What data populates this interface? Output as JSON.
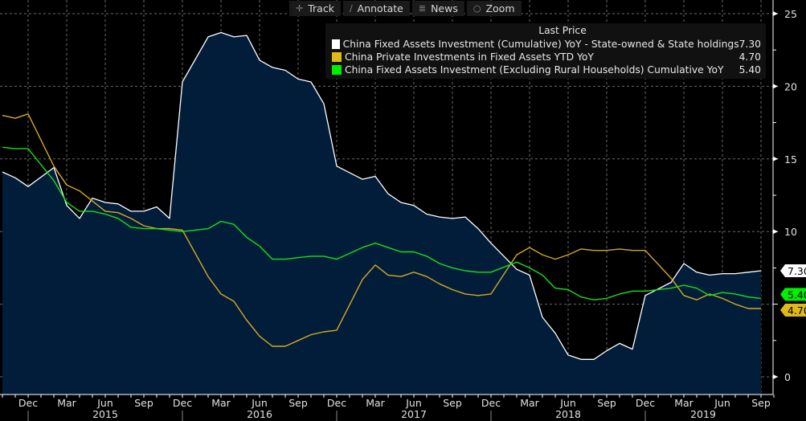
{
  "toolbar": {
    "items": [
      {
        "label": "Track",
        "icon": "crosshair-icon"
      },
      {
        "label": "Annotate",
        "icon": "pencil-icon"
      },
      {
        "label": "News",
        "icon": "news-icon"
      },
      {
        "label": "Zoom",
        "icon": "magnifier-icon"
      }
    ]
  },
  "legend": {
    "title": "Last Price",
    "entries": [
      {
        "name": "China Fixed Assets Investment (Cumulative) YoY - State-owned & State holdings",
        "value": "7.30",
        "color": "#ffffff"
      },
      {
        "name": "China Private Investments in Fixed Assets YTD YoY",
        "value": "4.70",
        "color": "#e0b818"
      },
      {
        "name": "China Fixed Assets Investment (Excluding Rural Households) Cumulative YoY",
        "value": "5.40",
        "color": "#00ee00"
      }
    ]
  },
  "chart_data": {
    "type": "line",
    "title": "",
    "xlabel": "",
    "ylabel": "",
    "ylim": [
      -1,
      25.8
    ],
    "yticks": [
      0,
      5,
      10,
      15,
      20,
      25
    ],
    "ytick_labels": [
      "0",
      "",
      "10",
      "15",
      "20",
      "25"
    ],
    "grid": true,
    "legend_position": "top-right",
    "x_month_labels": [
      "Dec",
      "Mar",
      "Jun",
      "Sep",
      "Dec",
      "Mar",
      "Jun",
      "Sep",
      "Dec",
      "Mar",
      "Jun",
      "Sep",
      "Dec",
      "Mar",
      "Jun",
      "Sep",
      "Dec",
      "Mar",
      "Jun",
      "Sep"
    ],
    "x_year_labels": [
      "2015",
      "2016",
      "2017",
      "2018",
      "2019"
    ],
    "x": [
      "2014-10",
      "2014-11",
      "2014-12",
      "2015-02",
      "2015-03",
      "2015-04",
      "2015-05",
      "2015-06",
      "2015-07",
      "2015-08",
      "2015-09",
      "2015-10",
      "2015-11",
      "2015-12",
      "2016-02",
      "2016-03",
      "2016-04",
      "2016-05",
      "2016-06",
      "2016-07",
      "2016-08",
      "2016-09",
      "2016-10",
      "2016-11",
      "2016-12",
      "2017-02",
      "2017-03",
      "2017-04",
      "2017-05",
      "2017-06",
      "2017-07",
      "2017-08",
      "2017-09",
      "2017-10",
      "2017-11",
      "2017-12",
      "2018-02",
      "2018-03",
      "2018-04",
      "2018-05",
      "2018-06",
      "2018-07",
      "2018-08",
      "2018-09",
      "2018-10",
      "2018-11",
      "2018-12",
      "2019-02",
      "2019-03",
      "2019-04",
      "2019-05",
      "2019-06",
      "2019-07",
      "2019-08",
      "2019-09"
    ],
    "series": [
      {
        "name": "China Fixed Assets Investment (Cumulative) YoY - State-owned & State holdings",
        "color": "#ffffff",
        "fill": "#021d3a",
        "last": 7.3,
        "values": [
          14.1,
          13.7,
          13.1,
          14.4,
          11.8,
          10.9,
          12.3,
          12.0,
          11.9,
          11.4,
          11.4,
          11.7,
          10.9,
          20.3,
          23.4,
          23.7,
          23.4,
          23.5,
          21.8,
          21.3,
          21.1,
          20.5,
          20.3,
          18.8,
          14.5,
          13.6,
          13.8,
          12.6,
          12.0,
          11.8,
          11.2,
          11.0,
          10.9,
          11.0,
          10.2,
          9.2,
          7.4,
          7.0,
          4.1,
          3.0,
          1.5,
          1.2,
          1.2,
          1.8,
          2.3,
          1.9,
          5.6,
          6.5,
          7.8,
          7.2,
          7.0,
          7.1,
          7.1,
          7.2,
          7.3
        ]
      },
      {
        "name": "China Private Investments in Fixed Assets YTD YoY",
        "color": "#d4aa1e",
        "last": 4.7,
        "values": [
          18.0,
          17.8,
          18.1,
          14.5,
          13.2,
          12.8,
          12.1,
          11.4,
          11.3,
          10.9,
          10.4,
          10.2,
          10.2,
          10.1,
          6.9,
          5.7,
          5.2,
          3.9,
          2.8,
          2.1,
          2.1,
          2.5,
          2.9,
          3.1,
          3.2,
          6.7,
          7.7,
          7.0,
          6.9,
          7.2,
          6.9,
          6.4,
          6.0,
          5.7,
          5.6,
          5.7,
          8.4,
          8.9,
          8.4,
          8.1,
          8.4,
          8.8,
          8.7,
          8.7,
          8.8,
          8.7,
          8.7,
          6.8,
          5.6,
          5.3,
          5.7,
          5.4,
          5.0,
          4.7,
          4.7
        ]
      },
      {
        "name": "China Fixed Assets Investment (Excluding Rural Households) Cumulative YoY",
        "color": "#16e016",
        "last": 5.4,
        "values": [
          15.8,
          15.7,
          15.7,
          13.5,
          12.0,
          11.4,
          11.4,
          11.2,
          10.9,
          10.3,
          10.2,
          10.2,
          10.1,
          10.0,
          10.2,
          10.7,
          10.5,
          9.6,
          9.0,
          8.1,
          8.1,
          8.2,
          8.3,
          8.3,
          8.1,
          8.9,
          9.2,
          8.9,
          8.6,
          8.6,
          8.3,
          7.8,
          7.5,
          7.3,
          7.2,
          7.2,
          7.9,
          7.5,
          7.0,
          6.1,
          6.0,
          5.5,
          5.3,
          5.4,
          5.7,
          5.9,
          5.9,
          6.1,
          6.3,
          6.1,
          5.6,
          5.8,
          5.7,
          5.5,
          5.4
        ]
      }
    ]
  }
}
